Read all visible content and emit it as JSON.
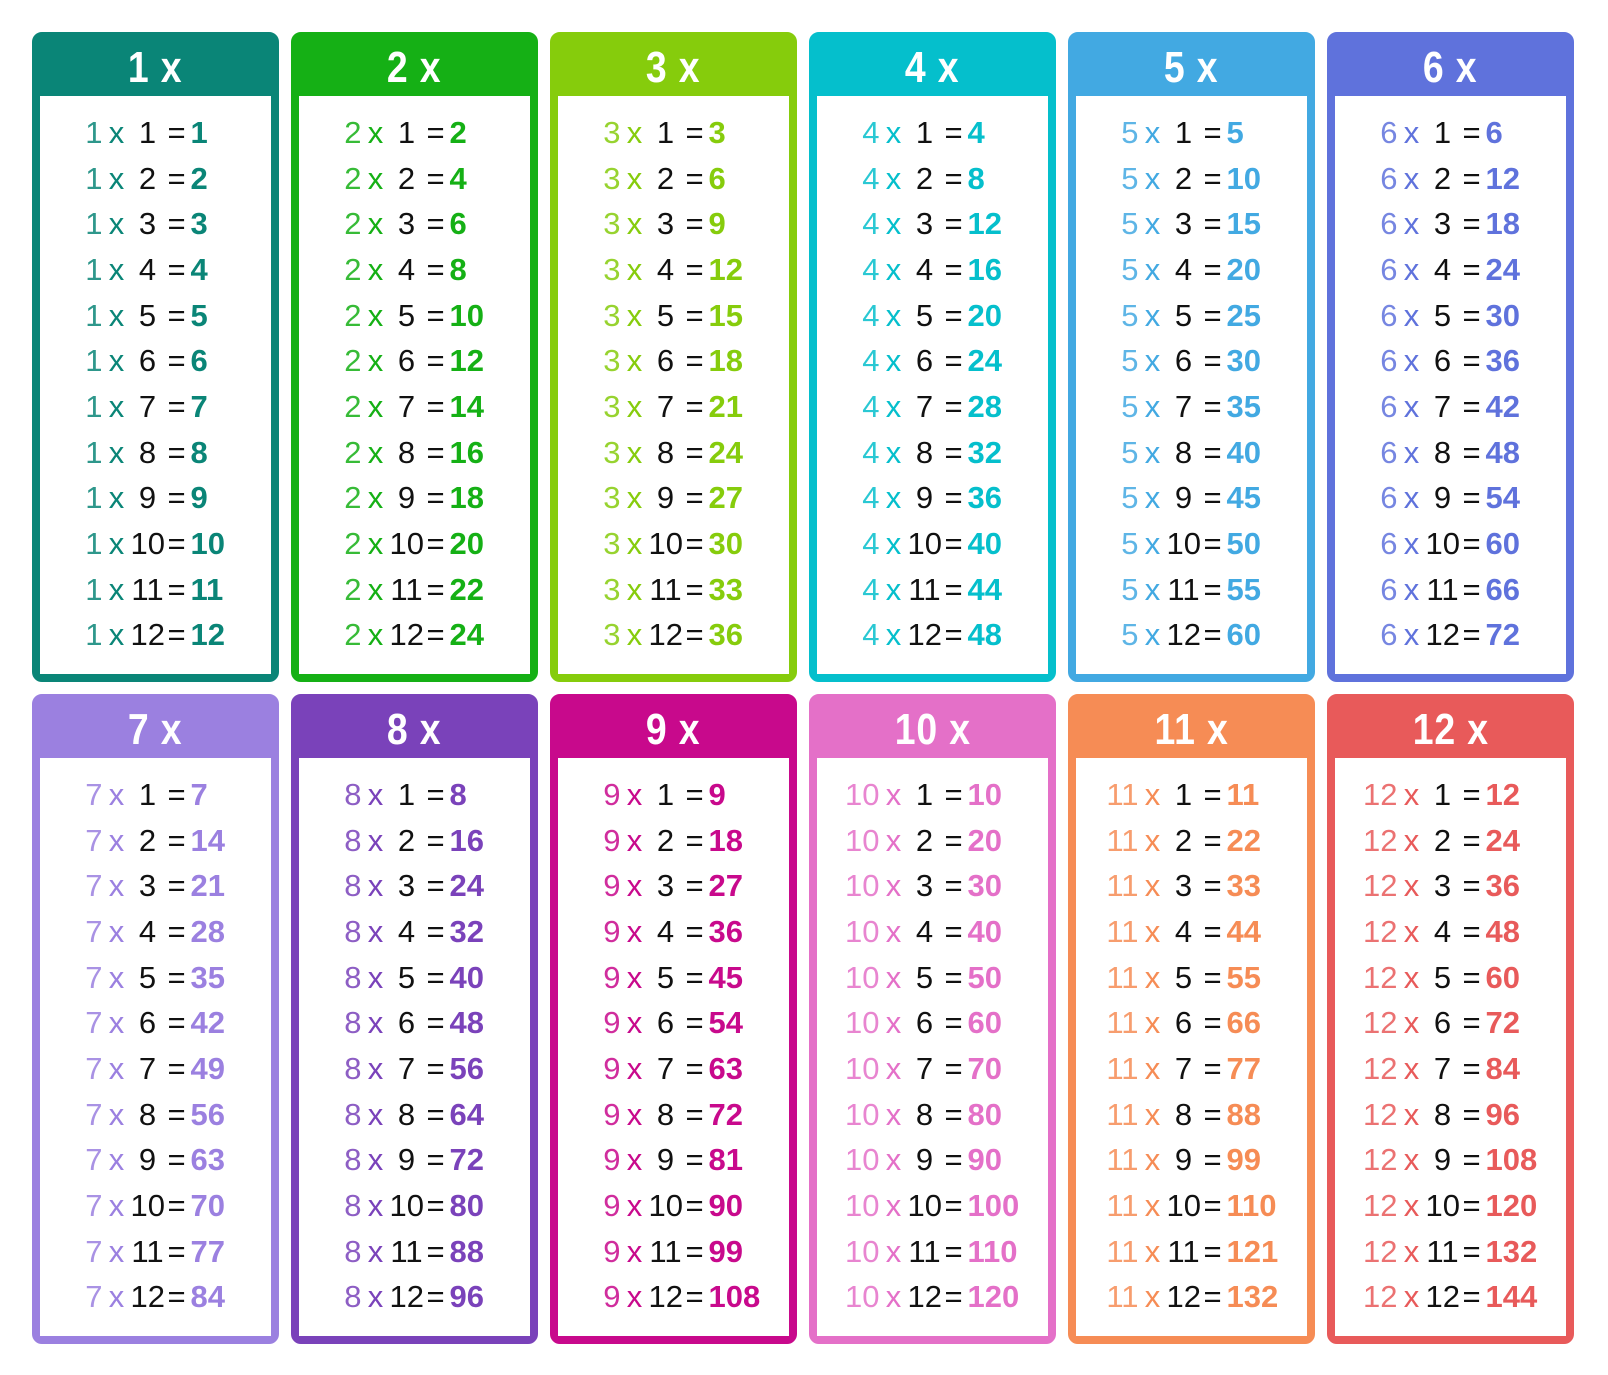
{
  "operator_symbol": "x",
  "equals_symbol": "=",
  "tables": [
    {
      "title": "1 x",
      "color": "#0a8577",
      "factor": "1",
      "rows": [
        [
          "1",
          "1"
        ],
        [
          "2",
          "2"
        ],
        [
          "3",
          "3"
        ],
        [
          "4",
          "4"
        ],
        [
          "5",
          "5"
        ],
        [
          "6",
          "6"
        ],
        [
          "7",
          "7"
        ],
        [
          "8",
          "8"
        ],
        [
          "9",
          "9"
        ],
        [
          "10",
          "10"
        ],
        [
          "11",
          "11"
        ],
        [
          "12",
          "12"
        ]
      ]
    },
    {
      "title": "2 x",
      "color": "#15b015",
      "factor": "2",
      "rows": [
        [
          "1",
          "2"
        ],
        [
          "2",
          "4"
        ],
        [
          "3",
          "6"
        ],
        [
          "4",
          "8"
        ],
        [
          "5",
          "10"
        ],
        [
          "6",
          "12"
        ],
        [
          "7",
          "14"
        ],
        [
          "8",
          "16"
        ],
        [
          "9",
          "18"
        ],
        [
          "10",
          "20"
        ],
        [
          "11",
          "22"
        ],
        [
          "12",
          "24"
        ]
      ]
    },
    {
      "title": "3 x",
      "color": "#86cc0c",
      "factor": "3",
      "rows": [
        [
          "1",
          "3"
        ],
        [
          "2",
          "6"
        ],
        [
          "3",
          "9"
        ],
        [
          "4",
          "12"
        ],
        [
          "5",
          "15"
        ],
        [
          "6",
          "18"
        ],
        [
          "7",
          "21"
        ],
        [
          "8",
          "24"
        ],
        [
          "9",
          "27"
        ],
        [
          "10",
          "30"
        ],
        [
          "11",
          "33"
        ],
        [
          "12",
          "36"
        ]
      ]
    },
    {
      "title": "4 x",
      "color": "#05bfcc",
      "factor": "4",
      "rows": [
        [
          "1",
          "4"
        ],
        [
          "2",
          "8"
        ],
        [
          "3",
          "12"
        ],
        [
          "4",
          "16"
        ],
        [
          "5",
          "20"
        ],
        [
          "6",
          "24"
        ],
        [
          "7",
          "28"
        ],
        [
          "8",
          "32"
        ],
        [
          "9",
          "36"
        ],
        [
          "10",
          "40"
        ],
        [
          "11",
          "44"
        ],
        [
          "12",
          "48"
        ]
      ]
    },
    {
      "title": "5 x",
      "color": "#42a9e2",
      "factor": "5",
      "rows": [
        [
          "1",
          "5"
        ],
        [
          "2",
          "10"
        ],
        [
          "3",
          "15"
        ],
        [
          "4",
          "20"
        ],
        [
          "5",
          "25"
        ],
        [
          "6",
          "30"
        ],
        [
          "7",
          "35"
        ],
        [
          "8",
          "40"
        ],
        [
          "9",
          "45"
        ],
        [
          "10",
          "50"
        ],
        [
          "11",
          "55"
        ],
        [
          "12",
          "60"
        ]
      ]
    },
    {
      "title": "6 x",
      "color": "#5f72dc",
      "factor": "6",
      "rows": [
        [
          "1",
          "6"
        ],
        [
          "2",
          "12"
        ],
        [
          "3",
          "18"
        ],
        [
          "4",
          "24"
        ],
        [
          "5",
          "30"
        ],
        [
          "6",
          "36"
        ],
        [
          "7",
          "42"
        ],
        [
          "8",
          "48"
        ],
        [
          "9",
          "54"
        ],
        [
          "10",
          "60"
        ],
        [
          "11",
          "66"
        ],
        [
          "12",
          "72"
        ]
      ]
    },
    {
      "title": "7 x",
      "color": "#9b80e0",
      "factor": "7",
      "rows": [
        [
          "1",
          "7"
        ],
        [
          "2",
          "14"
        ],
        [
          "3",
          "21"
        ],
        [
          "4",
          "28"
        ],
        [
          "5",
          "35"
        ],
        [
          "6",
          "42"
        ],
        [
          "7",
          "49"
        ],
        [
          "8",
          "56"
        ],
        [
          "9",
          "63"
        ],
        [
          "10",
          "70"
        ],
        [
          "11",
          "77"
        ],
        [
          "12",
          "84"
        ]
      ]
    },
    {
      "title": "8 x",
      "color": "#7a42ba",
      "factor": "8",
      "rows": [
        [
          "1",
          "8"
        ],
        [
          "2",
          "16"
        ],
        [
          "3",
          "24"
        ],
        [
          "4",
          "32"
        ],
        [
          "5",
          "40"
        ],
        [
          "6",
          "48"
        ],
        [
          "7",
          "56"
        ],
        [
          "8",
          "64"
        ],
        [
          "9",
          "72"
        ],
        [
          "10",
          "80"
        ],
        [
          "11",
          "88"
        ],
        [
          "12",
          "96"
        ]
      ]
    },
    {
      "title": "9 x",
      "color": "#c8098c",
      "factor": "9",
      "rows": [
        [
          "1",
          "9"
        ],
        [
          "2",
          "18"
        ],
        [
          "3",
          "27"
        ],
        [
          "4",
          "36"
        ],
        [
          "5",
          "45"
        ],
        [
          "6",
          "54"
        ],
        [
          "7",
          "63"
        ],
        [
          "8",
          "72"
        ],
        [
          "9",
          "81"
        ],
        [
          "10",
          "90"
        ],
        [
          "11",
          "99"
        ],
        [
          "12",
          "108"
        ]
      ]
    },
    {
      "title": "10 x",
      "color": "#e470c8",
      "factor": "10",
      "rows": [
        [
          "1",
          "10"
        ],
        [
          "2",
          "20"
        ],
        [
          "3",
          "30"
        ],
        [
          "4",
          "40"
        ],
        [
          "5",
          "50"
        ],
        [
          "6",
          "60"
        ],
        [
          "7",
          "70"
        ],
        [
          "8",
          "80"
        ],
        [
          "9",
          "90"
        ],
        [
          "10",
          "100"
        ],
        [
          "11",
          "110"
        ],
        [
          "12",
          "120"
        ]
      ]
    },
    {
      "title": "11 x",
      "color": "#f68c55",
      "factor": "11",
      "rows": [
        [
          "1",
          "11"
        ],
        [
          "2",
          "22"
        ],
        [
          "3",
          "33"
        ],
        [
          "4",
          "44"
        ],
        [
          "5",
          "55"
        ],
        [
          "6",
          "66"
        ],
        [
          "7",
          "77"
        ],
        [
          "8",
          "88"
        ],
        [
          "9",
          "99"
        ],
        [
          "10",
          "110"
        ],
        [
          "11",
          "121"
        ],
        [
          "12",
          "132"
        ]
      ]
    },
    {
      "title": "12 x",
      "color": "#e85a5a",
      "factor": "12",
      "rows": [
        [
          "1",
          "12"
        ],
        [
          "2",
          "24"
        ],
        [
          "3",
          "36"
        ],
        [
          "4",
          "48"
        ],
        [
          "5",
          "60"
        ],
        [
          "6",
          "72"
        ],
        [
          "7",
          "84"
        ],
        [
          "8",
          "96"
        ],
        [
          "9",
          "108"
        ],
        [
          "10",
          "120"
        ],
        [
          "11",
          "132"
        ],
        [
          "12",
          "144"
        ]
      ]
    }
  ]
}
